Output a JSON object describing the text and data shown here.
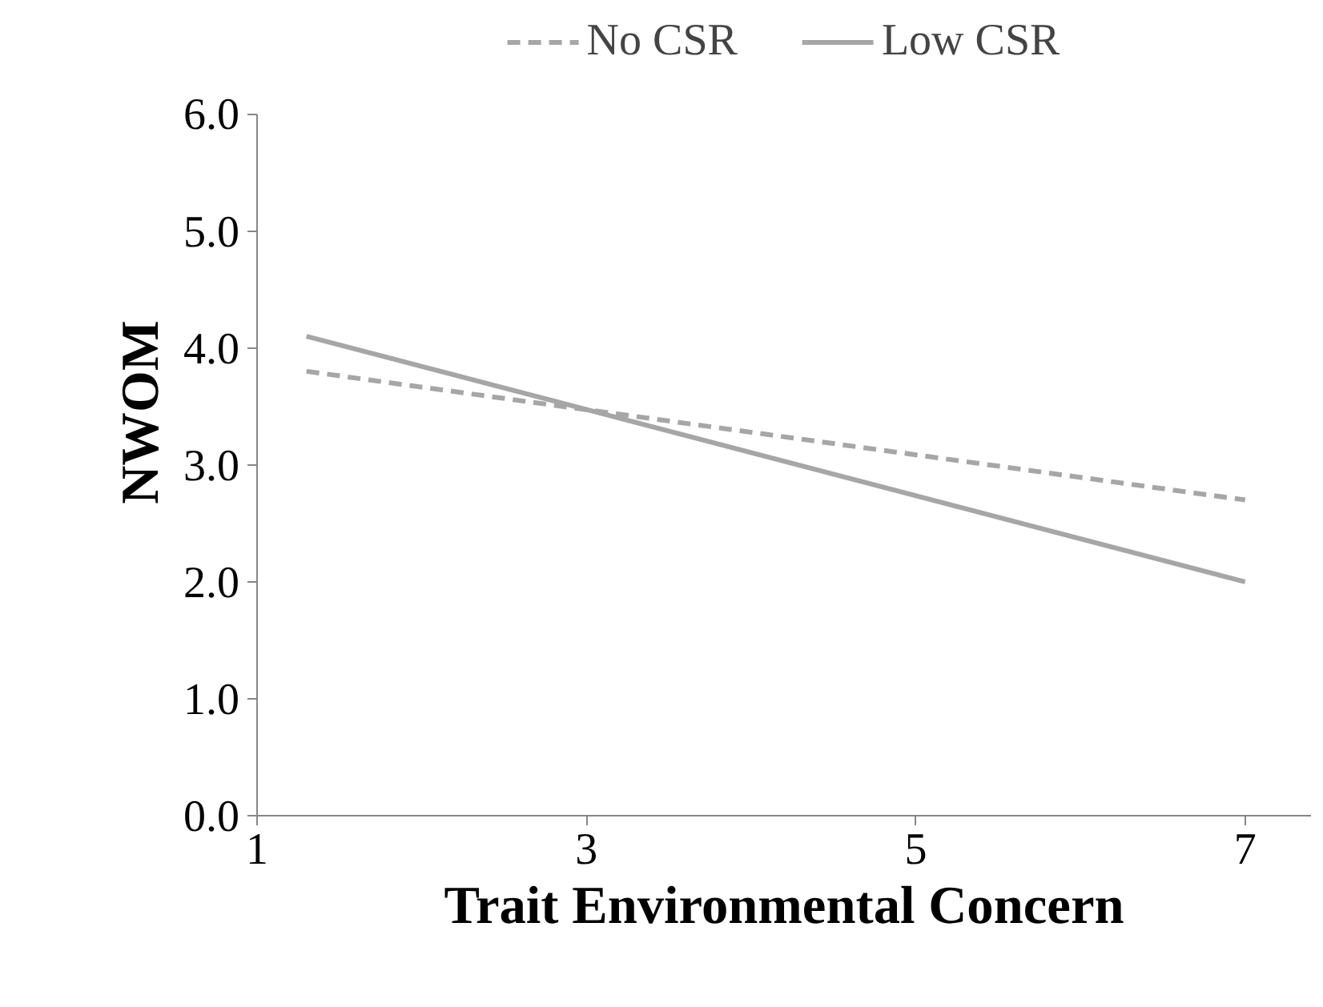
{
  "chart_data": {
    "type": "line",
    "xlabel": "Trait Environmental Concern",
    "ylabel": "NWOM",
    "x": [
      1.3,
      7
    ],
    "series": [
      {
        "name": "No CSR",
        "color": "#a6a6a6",
        "values": [
          3.8,
          2.7
        ],
        "line_style": "dashed"
      },
      {
        "name": "Low CSR",
        "color": "#a6a6a6",
        "values": [
          4.1,
          2.0
        ],
        "line_style": "solid"
      }
    ],
    "xlim": [
      1,
      7.4
    ],
    "xticks": [
      1,
      3,
      5,
      7
    ],
    "ylim": [
      0,
      6
    ],
    "yticks": [
      {
        "value": 0,
        "label": "0.0"
      },
      {
        "value": 1,
        "label": "1.0"
      },
      {
        "value": 2,
        "label": "2.0"
      },
      {
        "value": 3,
        "label": "3.0"
      },
      {
        "value": 4,
        "label": "4.0"
      },
      {
        "value": 5,
        "label": "5.0"
      },
      {
        "value": 6,
        "label": "6.0"
      }
    ],
    "grid": false,
    "legend": "top",
    "marker": "none"
  }
}
